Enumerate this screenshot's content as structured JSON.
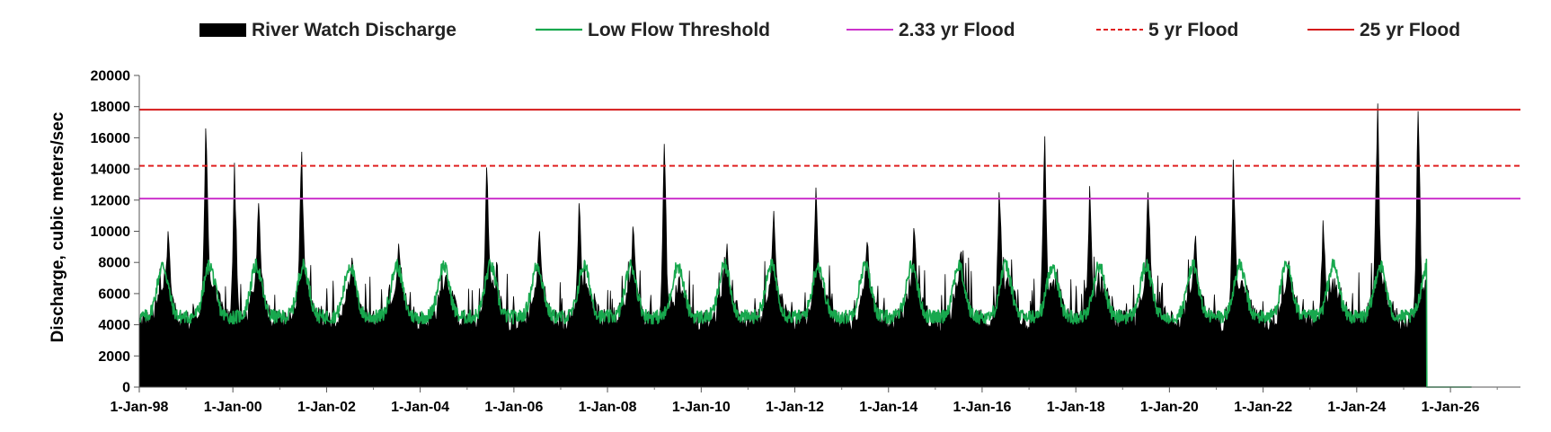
{
  "chart_data": {
    "type": "area",
    "title": "",
    "xlabel": "",
    "ylabel": "Discharge, cubic meters/sec",
    "ylim": [
      0,
      20000
    ],
    "y_ticks": [
      0,
      2000,
      4000,
      6000,
      8000,
      10000,
      12000,
      14000,
      16000,
      18000,
      20000
    ],
    "xlim": [
      "1998-01-01",
      "2027-07-01"
    ],
    "x_ticks": [
      {
        "date": "1998-01-01",
        "label": "1-Jan-98"
      },
      {
        "date": "2000-01-01",
        "label": "1-Jan-00"
      },
      {
        "date": "2002-01-01",
        "label": "1-Jan-02"
      },
      {
        "date": "2004-01-01",
        "label": "1-Jan-04"
      },
      {
        "date": "2006-01-01",
        "label": "1-Jan-06"
      },
      {
        "date": "2008-01-01",
        "label": "1-Jan-08"
      },
      {
        "date": "2010-01-01",
        "label": "1-Jan-10"
      },
      {
        "date": "2012-01-01",
        "label": "1-Jan-12"
      },
      {
        "date": "2014-01-01",
        "label": "1-Jan-14"
      },
      {
        "date": "2016-01-01",
        "label": "1-Jan-16"
      },
      {
        "date": "2018-01-01",
        "label": "1-Jan-18"
      },
      {
        "date": "2020-01-01",
        "label": "1-Jan-20"
      },
      {
        "date": "2022-01-01",
        "label": "1-Jan-22"
      },
      {
        "date": "2024-01-01",
        "label": "1-Jan-24"
      },
      {
        "date": "2026-01-01",
        "label": "1-Jan-26"
      }
    ],
    "grid": false,
    "legend": "top",
    "series": [
      {
        "name": "River Watch Discharge",
        "kind": "area",
        "color": "#000000",
        "annual_peaks": [
          {
            "date": "1998-08-15",
            "value": 10000
          },
          {
            "date": "1999-06-05",
            "value": 16600
          },
          {
            "date": "2000-01-15",
            "value": 14400
          },
          {
            "date": "2000-07-20",
            "value": 11800
          },
          {
            "date": "2001-06-20",
            "value": 15100
          },
          {
            "date": "2002-07-20",
            "value": 8300
          },
          {
            "date": "2003-07-20",
            "value": 9200
          },
          {
            "date": "2004-07-20",
            "value": 7200
          },
          {
            "date": "2005-06-05",
            "value": 14100
          },
          {
            "date": "2006-07-20",
            "value": 10000
          },
          {
            "date": "2007-05-25",
            "value": 11800
          },
          {
            "date": "2008-07-20",
            "value": 10300
          },
          {
            "date": "2009-03-20",
            "value": 15600
          },
          {
            "date": "2010-07-20",
            "value": 9200
          },
          {
            "date": "2011-07-20",
            "value": 11300
          },
          {
            "date": "2012-06-15",
            "value": 12800
          },
          {
            "date": "2013-07-20",
            "value": 9300
          },
          {
            "date": "2014-07-20",
            "value": 10200
          },
          {
            "date": "2015-07-20",
            "value": 8700
          },
          {
            "date": "2016-05-15",
            "value": 12500
          },
          {
            "date": "2017-05-01",
            "value": 16100
          },
          {
            "date": "2018-04-20",
            "value": 12900
          },
          {
            "date": "2019-07-20",
            "value": 12500
          },
          {
            "date": "2020-07-20",
            "value": 9700
          },
          {
            "date": "2021-05-15",
            "value": 14600
          },
          {
            "date": "2022-07-20",
            "value": 8100
          },
          {
            "date": "2023-04-15",
            "value": 10700
          },
          {
            "date": "2024-06-10",
            "value": 18200
          },
          {
            "date": "2025-04-25",
            "value": 17700
          }
        ],
        "end_date": "2025-07-01"
      },
      {
        "name": "Low Flow Threshold",
        "kind": "seasonal-line",
        "color": "#18a84e",
        "range": [
          3500,
          8200
        ],
        "drops_to_zero": "2025-07-01",
        "end_date": "2026-06-15"
      },
      {
        "name": "2.33 yr Flood",
        "kind": "hline",
        "value": 12100,
        "color": "#cc33cc",
        "dash": "solid"
      },
      {
        "name": "5 yr Flood",
        "kind": "hline",
        "value": 14200,
        "color": "#e02020",
        "dash": "dashed"
      },
      {
        "name": "25 yr Flood",
        "kind": "hline",
        "value": 17800,
        "color": "#d41a1a",
        "dash": "solid"
      }
    ]
  }
}
